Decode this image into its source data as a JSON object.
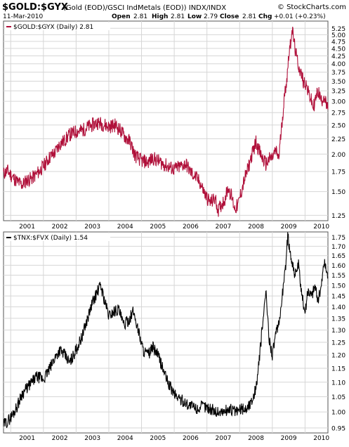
{
  "header": {
    "symbol": "$GOLD:$GYX",
    "description": "(Gold (EOD)/GSCI IndMetals (EOD)) INDX/INDX",
    "source": "© StockCharts.com",
    "date": "11-Mar-2010",
    "open_label": "Open",
    "open": "2.81",
    "high_label": "High",
    "high": "2.81",
    "low_label": "Low",
    "low": "2.79",
    "close_label": "Close",
    "close": "2.81",
    "chg_label": "Chg",
    "chg": "+0.01 (+0.23%)"
  },
  "chart_data": [
    {
      "type": "line",
      "legend": "$GOLD:$GYX (Daily) 2.81",
      "title": "",
      "xlabel": "",
      "ylabel": "",
      "y_scale": "log",
      "ylim": [
        1.2,
        5.55
      ],
      "xlim": [
        2000.28,
        2010.2
      ],
      "grid": true,
      "legend_placement": "top-left",
      "line_color": "#b0103a",
      "y_ticks": [
        1.25,
        1.5,
        1.75,
        2.0,
        2.25,
        2.5,
        2.75,
        3.0,
        3.25,
        3.5,
        3.75,
        4.0,
        4.25,
        4.5,
        4.75,
        5.0,
        5.25
      ],
      "y_tick_labels": [
        "1.25",
        "1.50",
        "1.75",
        "2.00",
        "2.25",
        "2.50",
        "2.75",
        "3.00",
        "3.25",
        "3.50",
        "3.75",
        "4.00",
        "4.25",
        "4.50",
        "4.75",
        "5.00",
        "5.25"
      ],
      "x_ticks": [
        2001,
        2002,
        2003,
        2004,
        2005,
        2006,
        2007,
        2008,
        2009,
        2010
      ],
      "x_tick_labels": [
        "2001",
        "2002",
        "2003",
        "2004",
        "2005",
        "2006",
        "2007",
        "2008",
        "2009",
        "2010"
      ],
      "x": [
        2000.28,
        2000.4,
        2000.55,
        2000.7,
        2000.85,
        2001.0,
        2001.15,
        2001.3,
        2001.5,
        2001.7,
        2001.85,
        2002.0,
        2002.15,
        2002.3,
        2002.5,
        2002.7,
        2002.85,
        2003.0,
        2003.15,
        2003.3,
        2003.5,
        2003.7,
        2003.85,
        2004.0,
        2004.15,
        2004.3,
        2004.5,
        2004.7,
        2004.85,
        2005.0,
        2005.15,
        2005.3,
        2005.5,
        2005.7,
        2005.85,
        2006.0,
        2006.15,
        2006.3,
        2006.45,
        2006.6,
        2006.75,
        2006.85,
        2006.95,
        2007.05,
        2007.15,
        2007.25,
        2007.35,
        2007.45,
        2007.55,
        2007.65,
        2007.75,
        2007.85,
        2008.0,
        2008.15,
        2008.3,
        2008.4,
        2008.5,
        2008.6,
        2008.7,
        2008.78,
        2008.85,
        2008.9,
        2008.95,
        2009.0,
        2009.05,
        2009.1,
        2009.15,
        2009.22,
        2009.3,
        2009.38,
        2009.45,
        2009.52,
        2009.6,
        2009.68,
        2009.75,
        2009.82,
        2009.9,
        2010.0,
        2010.08,
        2010.15,
        2010.2
      ],
      "values": [
        1.72,
        1.76,
        1.68,
        1.62,
        1.58,
        1.64,
        1.66,
        1.72,
        1.82,
        1.96,
        2.02,
        2.16,
        2.22,
        2.32,
        2.38,
        2.4,
        2.46,
        2.5,
        2.55,
        2.52,
        2.47,
        2.5,
        2.4,
        2.28,
        2.2,
        1.98,
        1.9,
        1.88,
        1.94,
        1.9,
        1.86,
        1.82,
        1.78,
        1.82,
        1.86,
        1.74,
        1.68,
        1.6,
        1.46,
        1.38,
        1.42,
        1.3,
        1.36,
        1.42,
        1.55,
        1.45,
        1.32,
        1.35,
        1.5,
        1.65,
        1.78,
        1.95,
        2.2,
        1.98,
        1.85,
        1.92,
        1.95,
        2.05,
        1.95,
        2.45,
        2.95,
        3.3,
        3.6,
        4.3,
        4.6,
        5.25,
        4.85,
        4.3,
        3.95,
        3.7,
        3.5,
        3.45,
        3.2,
        3.05,
        2.85,
        3.05,
        3.25,
        3.0,
        3.15,
        2.9,
        2.81
      ]
    },
    {
      "type": "line",
      "legend": "$TNX:$FVX (Daily) 1.54",
      "title": "",
      "xlabel": "",
      "ylabel": "",
      "y_scale": "log",
      "ylim": [
        0.935,
        1.78
      ],
      "xlim": [
        2000.28,
        2010.2
      ],
      "grid": true,
      "legend_placement": "top-left",
      "line_color": "#000000",
      "y_ticks": [
        0.95,
        1.0,
        1.05,
        1.1,
        1.15,
        1.2,
        1.25,
        1.3,
        1.35,
        1.4,
        1.45,
        1.5,
        1.55,
        1.6,
        1.65,
        1.7,
        1.75
      ],
      "y_tick_labels": [
        "0.95",
        "1.00",
        "1.05",
        "1.10",
        "1.15",
        "1.20",
        "1.25",
        "1.30",
        "1.35",
        "1.40",
        "1.45",
        "1.50",
        "1.55",
        "1.60",
        "1.65",
        "1.70",
        "1.75"
      ],
      "x_ticks": [
        2001,
        2002,
        2003,
        2004,
        2005,
        2006,
        2007,
        2008,
        2009,
        2010
      ],
      "x_tick_labels": [
        "2001",
        "2002",
        "2003",
        "2004",
        "2005",
        "2006",
        "2007",
        "2008",
        "2009",
        "2010"
      ],
      "x": [
        2000.28,
        2000.4,
        2000.55,
        2000.7,
        2000.85,
        2001.0,
        2001.15,
        2001.3,
        2001.5,
        2001.7,
        2001.85,
        2002.0,
        2002.15,
        2002.3,
        2002.5,
        2002.7,
        2002.85,
        2003.0,
        2003.15,
        2003.25,
        2003.35,
        2003.5,
        2003.65,
        2003.8,
        2003.95,
        2004.1,
        2004.25,
        2004.4,
        2004.55,
        2004.7,
        2004.85,
        2005.0,
        2005.15,
        2005.3,
        2005.5,
        2005.7,
        2005.85,
        2006.0,
        2006.2,
        2006.4,
        2006.6,
        2006.8,
        2007.0,
        2007.2,
        2007.4,
        2007.55,
        2007.7,
        2007.85,
        2008.0,
        2008.1,
        2008.2,
        2008.3,
        2008.4,
        2008.5,
        2008.6,
        2008.7,
        2008.8,
        2008.9,
        2008.97,
        2009.02,
        2009.1,
        2009.2,
        2009.3,
        2009.4,
        2009.5,
        2009.6,
        2009.7,
        2009.8,
        2009.9,
        2010.0,
        2010.08,
        2010.15,
        2010.2
      ],
      "values": [
        0.96,
        0.97,
        0.99,
        1.02,
        1.06,
        1.08,
        1.1,
        1.12,
        1.11,
        1.15,
        1.19,
        1.22,
        1.2,
        1.17,
        1.22,
        1.28,
        1.35,
        1.42,
        1.47,
        1.5,
        1.44,
        1.36,
        1.38,
        1.39,
        1.32,
        1.34,
        1.38,
        1.3,
        1.22,
        1.2,
        1.23,
        1.2,
        1.15,
        1.1,
        1.06,
        1.04,
        1.03,
        1.02,
        1.01,
        1.02,
        1.01,
        1.0,
        1.0,
        1.01,
        1.0,
        1.01,
        1.01,
        1.03,
        1.08,
        1.18,
        1.32,
        1.47,
        1.27,
        1.2,
        1.28,
        1.32,
        1.45,
        1.58,
        1.76,
        1.7,
        1.62,
        1.55,
        1.6,
        1.45,
        1.38,
        1.48,
        1.45,
        1.5,
        1.43,
        1.5,
        1.62,
        1.58,
        1.54
      ]
    }
  ]
}
